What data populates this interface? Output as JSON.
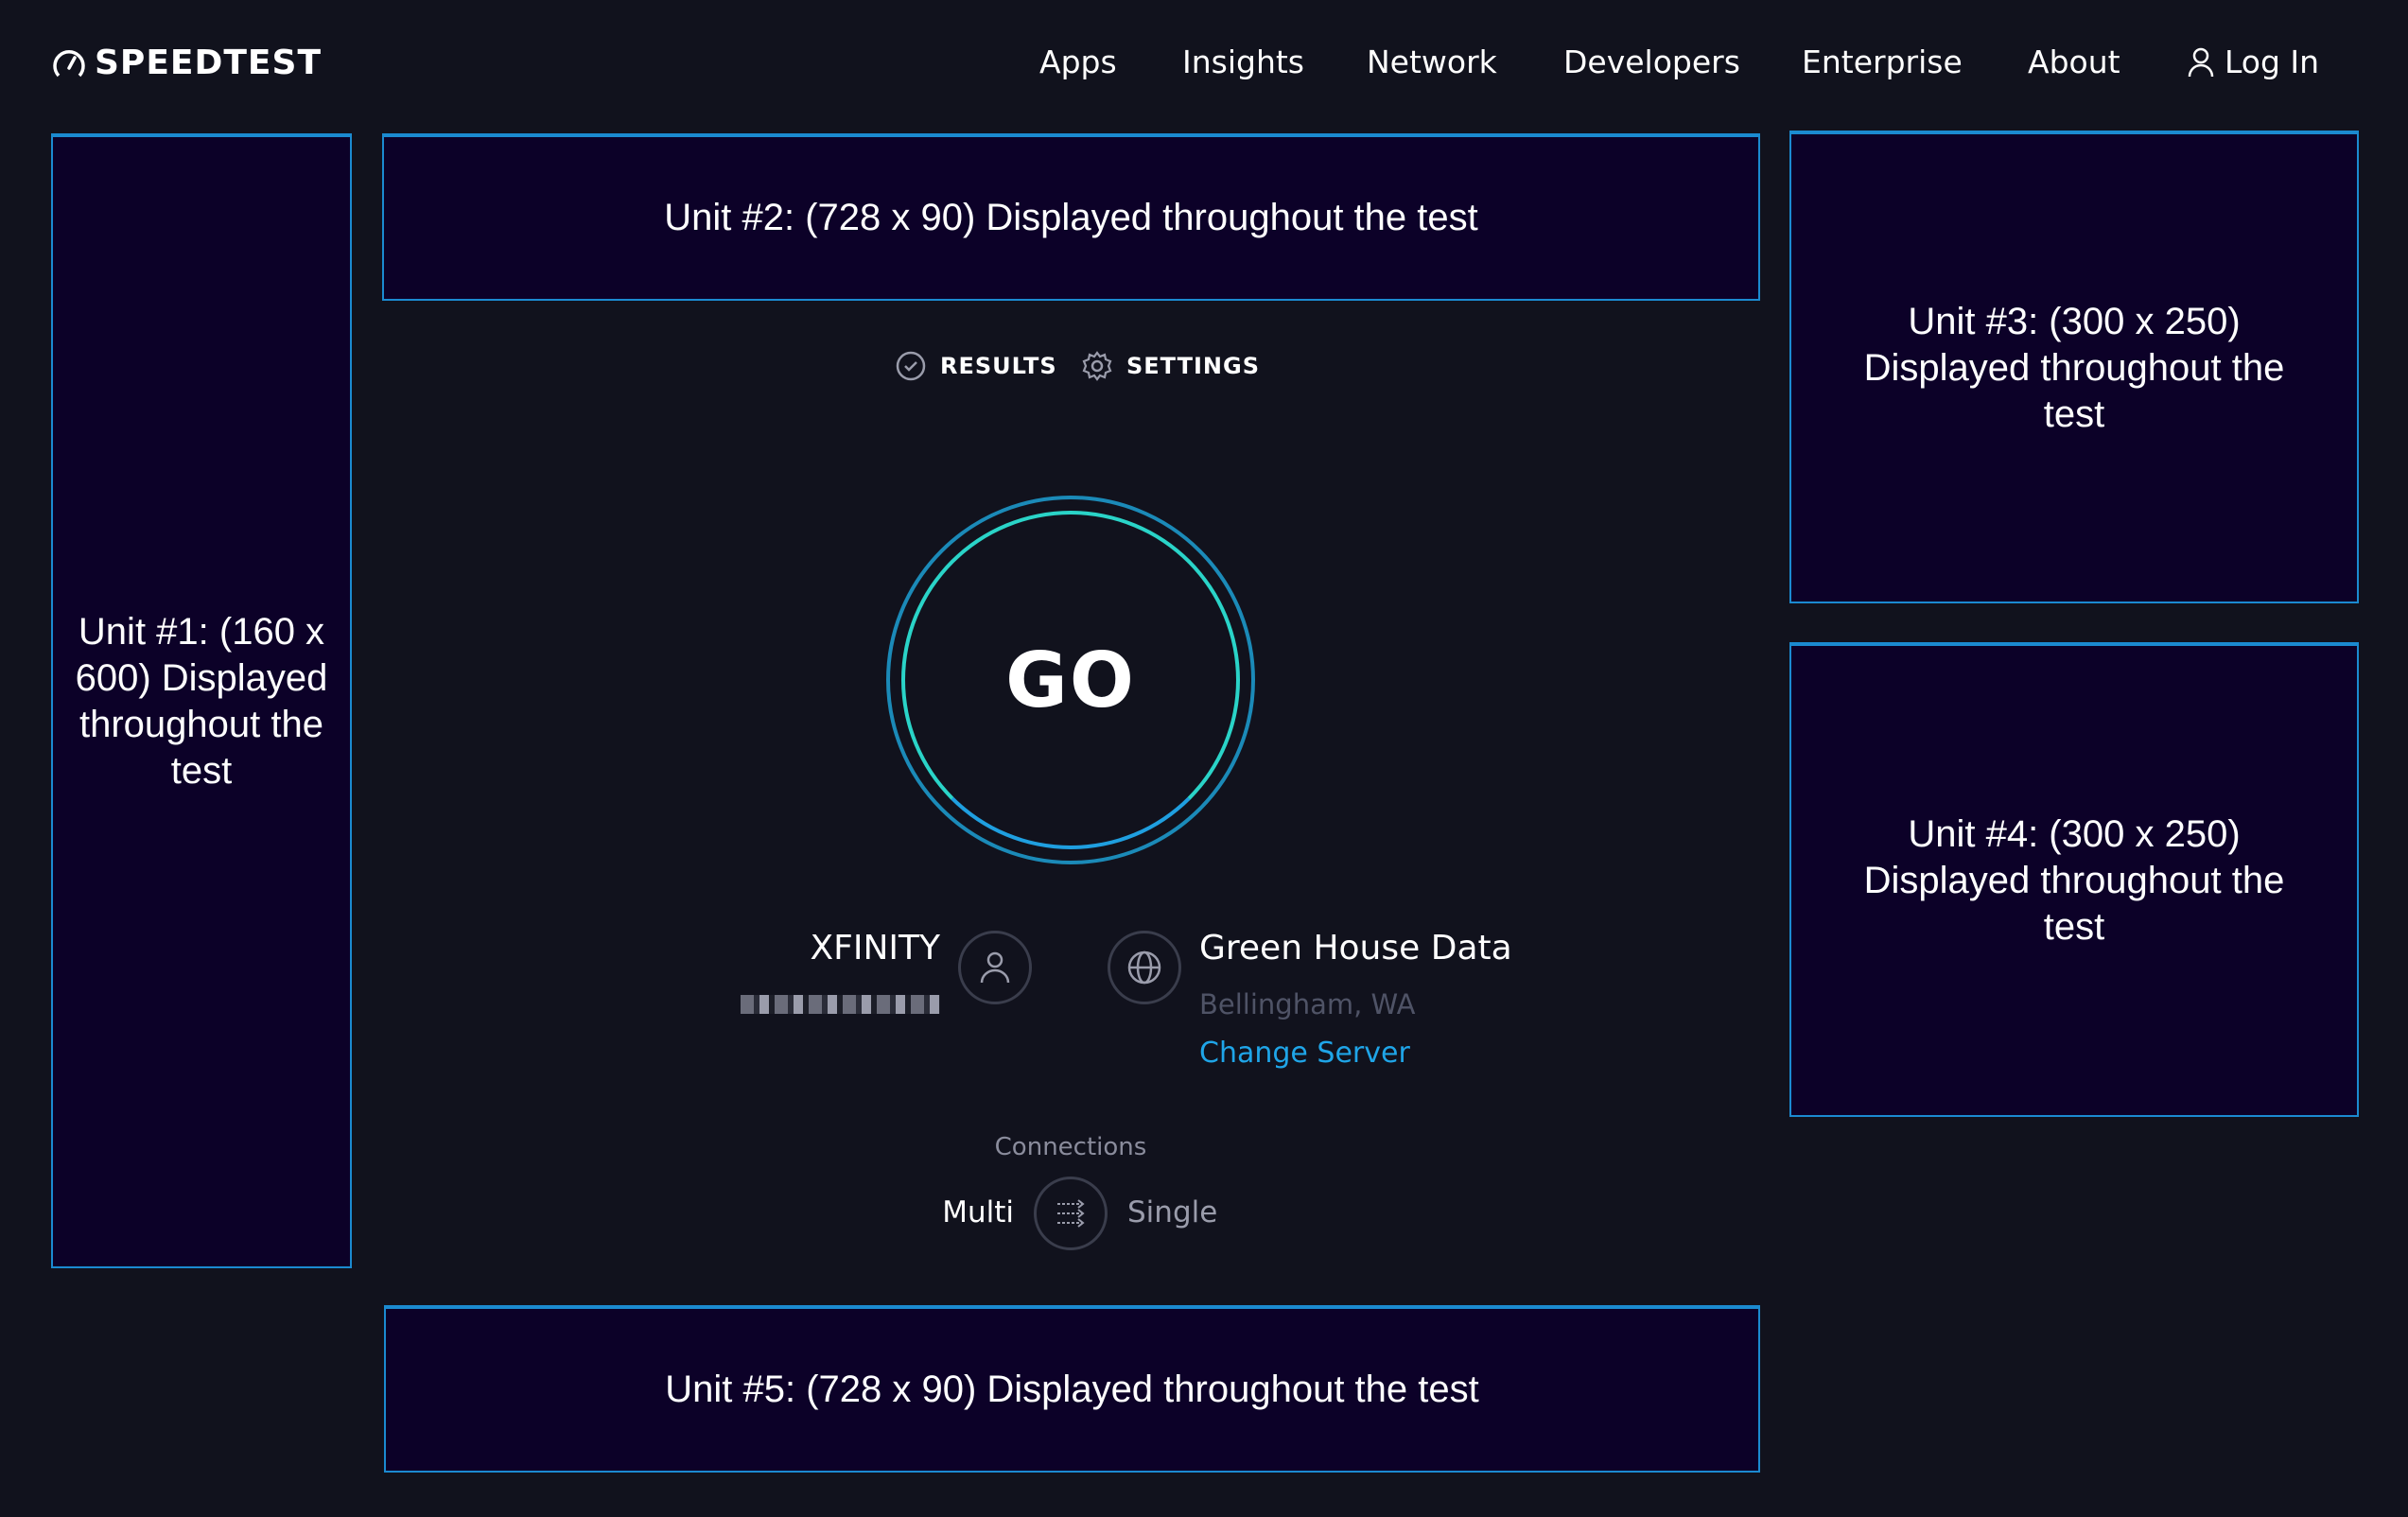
{
  "header": {
    "logo": "SPEEDTEST",
    "nav": [
      "Apps",
      "Insights",
      "Network",
      "Developers",
      "Enterprise",
      "About"
    ],
    "login": "Log In"
  },
  "ads": {
    "unit1": "Unit #1: (160 x 600) Displayed throughout the test",
    "unit2": "Unit #2: (728 x 90) Displayed throughout the test",
    "unit3": "Unit #3: (300 x 250) Displayed throughout the test",
    "unit4": "Unit #4: (300 x 250) Displayed throughout the test",
    "unit5": "Unit #5: (728 x 90) Displayed throughout the test"
  },
  "tabs": {
    "results": "RESULTS",
    "settings": "SETTINGS"
  },
  "go_label": "GO",
  "isp": {
    "name": "XFINITY",
    "icon": "person-icon"
  },
  "server": {
    "name": "Green House Data",
    "location": "Bellingham, WA",
    "change": "Change Server",
    "icon": "globe-icon"
  },
  "connections": {
    "label": "Connections",
    "multi": "Multi",
    "single": "Single",
    "selected": "Multi"
  },
  "colors": {
    "background": "#11121d",
    "ad_border": "#1b8ad0",
    "ad_bg": "#0c0128",
    "link": "#1fa5e8",
    "ring_inner": "#2ad4c8",
    "ring_outer": "#1b8ab8"
  }
}
